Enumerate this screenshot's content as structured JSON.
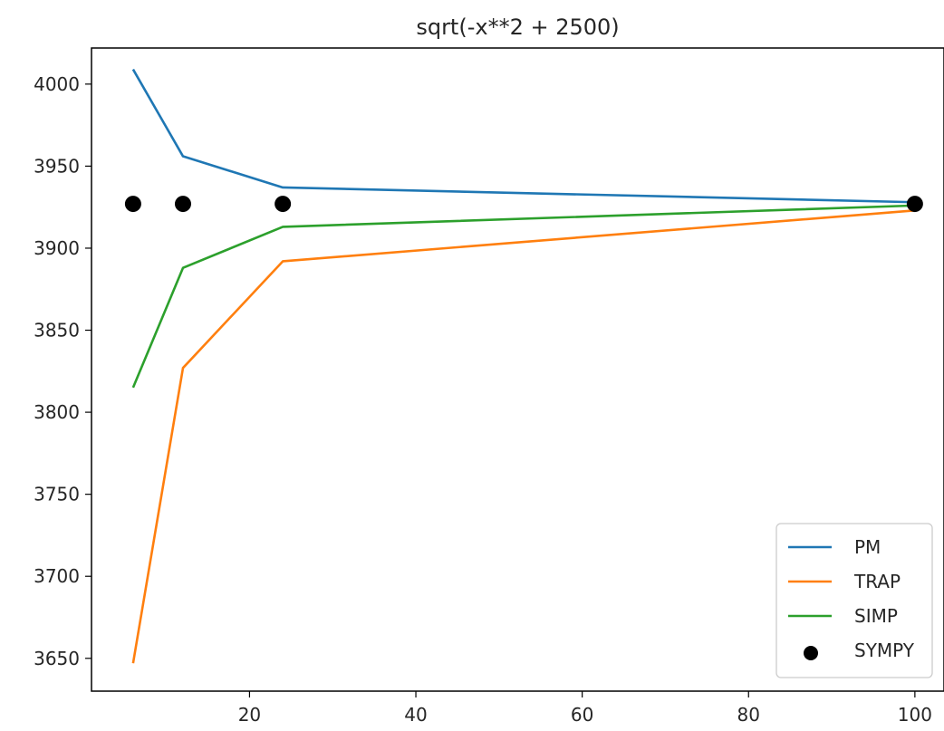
{
  "chart_data": {
    "type": "line",
    "title": "sqrt(-x**2 + 2500)",
    "xlabel": "",
    "ylabel": "",
    "xlim": [
      1,
      103.5
    ],
    "ylim": [
      3630,
      4022
    ],
    "x_ticks": [
      20,
      40,
      60,
      80,
      100
    ],
    "y_ticks": [
      3650,
      3700,
      3750,
      3800,
      3850,
      3900,
      3950,
      4000
    ],
    "grid": false,
    "legend_position": "lower right",
    "x": [
      6,
      12,
      24,
      100
    ],
    "series": [
      {
        "name": "PM",
        "type": "line",
        "color": "#1f77b4",
        "values": [
          4009,
          3956,
          3937,
          3928
        ]
      },
      {
        "name": "TRAP",
        "type": "line",
        "color": "#ff7f0e",
        "values": [
          3647,
          3827,
          3892,
          3923
        ]
      },
      {
        "name": "SIMP",
        "type": "line",
        "color": "#2ca02c",
        "values": [
          3815,
          3888,
          3913,
          3926
        ]
      },
      {
        "name": "SYMPY",
        "type": "scatter",
        "color": "#000000",
        "values": [
          3927,
          3927,
          3927,
          3927
        ]
      }
    ]
  }
}
